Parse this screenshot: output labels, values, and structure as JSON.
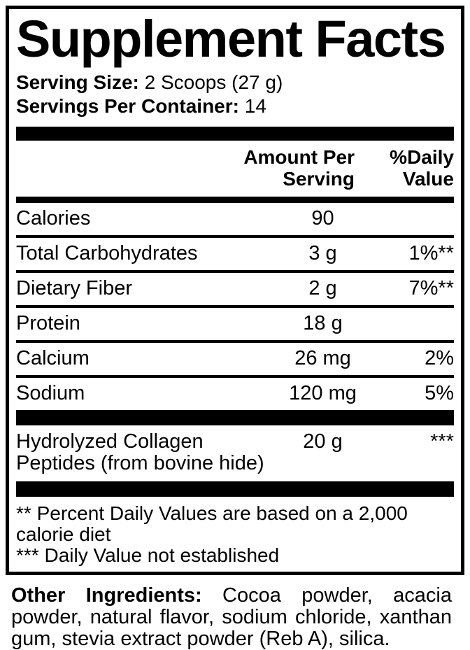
{
  "colors": {
    "ink": "#000000",
    "paper": "#ffffff"
  },
  "label": {
    "title": "Supplement Facts",
    "serving": {
      "size_label": "Serving Size:",
      "size_value": "2 Scoops (27 g)",
      "count_label": "Servings Per Container:",
      "count_value": "14"
    },
    "header": {
      "amount_lines": [
        "Amount Per",
        "Serving"
      ],
      "dv_lines": [
        "%Daily",
        "Value"
      ]
    },
    "rows": [
      {
        "name": "Calories",
        "amount": "90",
        "dv": ""
      },
      {
        "name": "Total Carbohydrates",
        "amount": "3 g",
        "dv": "1%**"
      },
      {
        "name": "Dietary Fiber",
        "amount": "2 g",
        "dv": "7%**"
      },
      {
        "name": "Protein",
        "amount": "18 g",
        "dv": ""
      },
      {
        "name": "Calcium",
        "amount": "26 mg",
        "dv": "2%"
      },
      {
        "name": "Sodium",
        "amount": "120 mg",
        "dv": "5%"
      }
    ],
    "collagen_row": {
      "name": "Hydrolyzed Collagen Peptides (from bovine hide)",
      "amount": "20 g",
      "dv": "***"
    },
    "footnotes": [
      "** Percent Daily Values are based on a 2,000 calorie diet",
      "*** Daily Value not established"
    ],
    "other_ingredients": {
      "label": "Other Ingredients:",
      "text": "Cocoa powder, acacia powder, natural flavor, sodium chloride, xanthan gum, stevia extract powder (Reb A), silica."
    }
  }
}
